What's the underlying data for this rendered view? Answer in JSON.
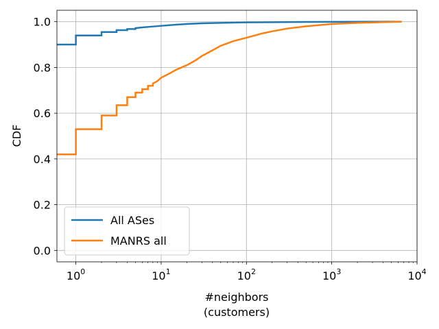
{
  "chart_data": {
    "type": "line",
    "step": true,
    "x_scale": "log",
    "xlim": [
      0.6,
      10000
    ],
    "ylim": [
      -0.05,
      1.05
    ],
    "xlabel": "#neighbors",
    "xlabel2": "(customers)",
    "ylabel": "CDF",
    "grid": true,
    "legend_position": "lower-left",
    "x_ticks": [
      {
        "value": 1,
        "base": "10",
        "exp": "0"
      },
      {
        "value": 10,
        "base": "10",
        "exp": "1"
      },
      {
        "value": 100,
        "base": "10",
        "exp": "2"
      },
      {
        "value": 1000,
        "base": "10",
        "exp": "3"
      },
      {
        "value": 10000,
        "base": "10",
        "exp": "4"
      }
    ],
    "y_ticks": [
      {
        "value": 0.0,
        "label": "0.0"
      },
      {
        "value": 0.2,
        "label": "0.2"
      },
      {
        "value": 0.4,
        "label": "0.4"
      },
      {
        "value": 0.6,
        "label": "0.6"
      },
      {
        "value": 0.8,
        "label": "0.8"
      },
      {
        "value": 1.0,
        "label": "1.0"
      }
    ],
    "series": [
      {
        "name": "All ASes",
        "color": "#1f77b4",
        "points": [
          [
            0.6,
            0.9
          ],
          [
            1,
            0.9
          ],
          [
            1,
            0.94
          ],
          [
            2,
            0.94
          ],
          [
            2,
            0.955
          ],
          [
            3,
            0.955
          ],
          [
            3,
            0.963
          ],
          [
            4,
            0.963
          ],
          [
            4,
            0.968
          ],
          [
            5,
            0.968
          ],
          [
            5,
            0.972
          ],
          [
            6,
            0.975
          ],
          [
            8,
            0.979
          ],
          [
            10,
            0.982
          ],
          [
            15,
            0.987
          ],
          [
            20,
            0.99
          ],
          [
            30,
            0.993
          ],
          [
            50,
            0.995
          ],
          [
            100,
            0.997
          ],
          [
            200,
            0.998
          ],
          [
            500,
            0.999
          ],
          [
            1000,
            0.9995
          ],
          [
            6600,
            1.0
          ]
        ]
      },
      {
        "name": "MANRS all",
        "color": "#ff7f0e",
        "points": [
          [
            0.6,
            0.42
          ],
          [
            1,
            0.42
          ],
          [
            1,
            0.53
          ],
          [
            2,
            0.53
          ],
          [
            2,
            0.59
          ],
          [
            3,
            0.59
          ],
          [
            3,
            0.635
          ],
          [
            4,
            0.635
          ],
          [
            4,
            0.67
          ],
          [
            5,
            0.67
          ],
          [
            5,
            0.69
          ],
          [
            6,
            0.69
          ],
          [
            6,
            0.705
          ],
          [
            7,
            0.705
          ],
          [
            7,
            0.72
          ],
          [
            8,
            0.72
          ],
          [
            8,
            0.73
          ],
          [
            9,
            0.74
          ],
          [
            10,
            0.755
          ],
          [
            12,
            0.77
          ],
          [
            15,
            0.79
          ],
          [
            20,
            0.81
          ],
          [
            25,
            0.83
          ],
          [
            30,
            0.85
          ],
          [
            40,
            0.875
          ],
          [
            50,
            0.895
          ],
          [
            70,
            0.915
          ],
          [
            100,
            0.93
          ],
          [
            150,
            0.948
          ],
          [
            200,
            0.958
          ],
          [
            300,
            0.97
          ],
          [
            500,
            0.98
          ],
          [
            1000,
            0.99
          ],
          [
            2000,
            0.995
          ],
          [
            6600,
            1.0
          ]
        ]
      }
    ]
  }
}
